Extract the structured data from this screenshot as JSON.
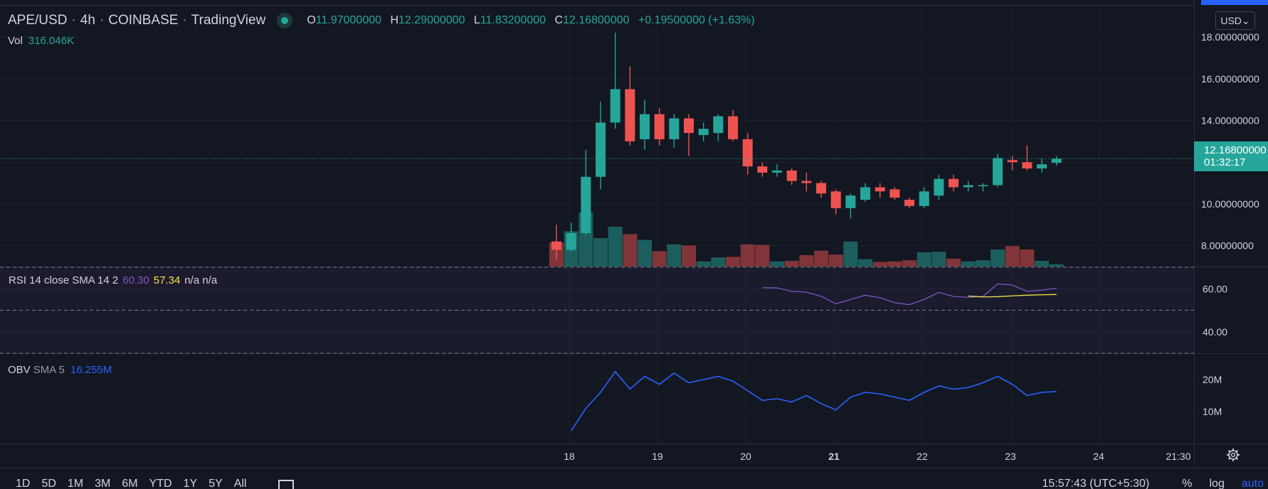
{
  "header": {
    "symbol": "APE/USD",
    "interval": "4h",
    "exchange": "COINBASE",
    "source": "TradingView",
    "ohlc": {
      "o_label": "O",
      "o": "11.97000000",
      "h_label": "H",
      "h": "12.29000000",
      "l_label": "L",
      "l": "11.83200000",
      "c_label": "C",
      "c": "12.16800000",
      "change": "+0.19500000 (+1.63%)"
    }
  },
  "volume_legend": {
    "label": "Vol",
    "value": "316.046K"
  },
  "rsi_legend": {
    "label": "RSI 14 close SMA 14 2",
    "rsi": "60.30",
    "sma": "57.34",
    "na": "n/a n/a"
  },
  "obv_legend": {
    "label": "OBV",
    "sma": "SMA 5",
    "value": "16.255M"
  },
  "currency_button": "USD⌄",
  "price_tag": {
    "price": "12.16800000",
    "countdown": "01:32:17"
  },
  "price_axis": [
    "18.00000000",
    "16.00000000",
    "14.00000000",
    "10.00000000",
    "8.00000000"
  ],
  "rsi_axis": [
    "60.00",
    "40.00"
  ],
  "obv_axis": [
    "20M",
    "10M"
  ],
  "time_axis": [
    "18",
    "19",
    "20",
    "21",
    "22",
    "23",
    "24",
    "21:30"
  ],
  "bottom_bar": {
    "ranges": [
      "1D",
      "5D",
      "1M",
      "3M",
      "6M",
      "YTD",
      "1Y",
      "5Y",
      "All"
    ],
    "clock": "15:57:43 (UTC+5:30)",
    "percent": "%",
    "log": "log",
    "auto": "auto"
  },
  "colors": {
    "up": "#26a69a",
    "down": "#ef5350",
    "rsi": "#7e57c2",
    "rsi_sma": "#f5e546",
    "obv": "#2962ff",
    "background": "#131722"
  },
  "chart_data": [
    {
      "type": "candlestick",
      "interval": "4h",
      "x_start": "2022-03-17 20:00",
      "candles": [
        {
          "o": 8.2,
          "h": 9.0,
          "l": 7.3,
          "c": 7.8
        },
        {
          "o": 7.8,
          "h": 9.1,
          "l": 7.7,
          "c": 8.6
        },
        {
          "o": 8.6,
          "h": 12.6,
          "l": 8.5,
          "c": 11.3
        },
        {
          "o": 11.3,
          "h": 14.9,
          "l": 10.7,
          "c": 13.9
        },
        {
          "o": 13.9,
          "h": 18.2,
          "l": 13.6,
          "c": 15.5
        },
        {
          "o": 15.5,
          "h": 16.6,
          "l": 12.8,
          "c": 13.0
        },
        {
          "o": 13.1,
          "h": 15.0,
          "l": 12.6,
          "c": 14.3
        },
        {
          "o": 14.3,
          "h": 14.6,
          "l": 12.8,
          "c": 13.1
        },
        {
          "o": 13.1,
          "h": 14.3,
          "l": 12.7,
          "c": 14.1
        },
        {
          "o": 14.1,
          "h": 14.3,
          "l": 12.3,
          "c": 13.4
        },
        {
          "o": 13.3,
          "h": 13.9,
          "l": 13.0,
          "c": 13.6
        },
        {
          "o": 13.4,
          "h": 14.3,
          "l": 13.0,
          "c": 14.2
        },
        {
          "o": 14.2,
          "h": 14.5,
          "l": 13.0,
          "c": 13.1
        },
        {
          "o": 13.1,
          "h": 13.4,
          "l": 11.4,
          "c": 11.8
        },
        {
          "o": 11.8,
          "h": 12.0,
          "l": 11.3,
          "c": 11.5
        },
        {
          "o": 11.5,
          "h": 11.9,
          "l": 11.3,
          "c": 11.6
        },
        {
          "o": 11.6,
          "h": 11.7,
          "l": 10.9,
          "c": 11.1
        },
        {
          "o": 11.1,
          "h": 11.5,
          "l": 10.6,
          "c": 11.0
        },
        {
          "o": 11.0,
          "h": 11.1,
          "l": 10.3,
          "c": 10.5
        },
        {
          "o": 10.6,
          "h": 10.7,
          "l": 9.5,
          "c": 9.8
        },
        {
          "o": 9.8,
          "h": 10.5,
          "l": 9.3,
          "c": 10.4
        },
        {
          "o": 10.2,
          "h": 11.0,
          "l": 10.1,
          "c": 10.8
        },
        {
          "o": 10.8,
          "h": 11.0,
          "l": 10.3,
          "c": 10.6
        },
        {
          "o": 10.7,
          "h": 10.8,
          "l": 10.2,
          "c": 10.3
        },
        {
          "o": 10.2,
          "h": 10.3,
          "l": 9.8,
          "c": 9.9
        },
        {
          "o": 9.9,
          "h": 10.8,
          "l": 9.8,
          "c": 10.6
        },
        {
          "o": 10.4,
          "h": 11.4,
          "l": 10.2,
          "c": 11.2
        },
        {
          "o": 11.2,
          "h": 11.4,
          "l": 10.6,
          "c": 10.8
        },
        {
          "o": 10.8,
          "h": 11.1,
          "l": 10.6,
          "c": 10.9
        },
        {
          "o": 10.9,
          "h": 11.0,
          "l": 10.6,
          "c": 10.9
        },
        {
          "o": 10.9,
          "h": 12.4,
          "l": 10.8,
          "c": 12.2
        },
        {
          "o": 12.1,
          "h": 12.3,
          "l": 11.6,
          "c": 12.0
        },
        {
          "o": 12.0,
          "h": 12.8,
          "l": 11.6,
          "c": 11.7
        },
        {
          "o": 11.7,
          "h": 12.2,
          "l": 11.5,
          "c": 11.9
        },
        {
          "o": 11.97,
          "h": 12.29,
          "l": 11.832,
          "c": 12.168
        }
      ],
      "volume": [
        0.42,
        0.62,
        0.95,
        0.5,
        0.7,
        0.57,
        0.47,
        0.27,
        0.39,
        0.37,
        0.09,
        0.16,
        0.17,
        0.39,
        0.38,
        0.09,
        0.1,
        0.2,
        0.28,
        0.21,
        0.44,
        0.13,
        0.08,
        0.09,
        0.11,
        0.25,
        0.26,
        0.14,
        0.09,
        0.11,
        0.3,
        0.36,
        0.3,
        0.1,
        0.04
      ],
      "current_price": 12.168,
      "ylim": [
        7.0,
        19.5
      ]
    },
    {
      "type": "line",
      "title": "RSI 14 close SMA 14 2",
      "series": [
        {
          "name": "RSI",
          "start_index": 14,
          "values": [
            60.5,
            60.4,
            58.8,
            58.4,
            56.5,
            53.0,
            55.0,
            57.0,
            55.8,
            53.5,
            52.6,
            55.0,
            58.3,
            56.4,
            56.0,
            56.4,
            62.3,
            61.7,
            58.8,
            59.3,
            60.3
          ]
        },
        {
          "name": "SMA",
          "start_index": 28,
          "values": [
            56.6,
            56.2,
            56.3,
            56.7,
            57.0,
            57.2,
            57.34
          ]
        }
      ],
      "ylim": [
        30,
        70
      ]
    },
    {
      "type": "line",
      "title": "OBV SMA 5",
      "series": [
        {
          "name": "OBV",
          "start_index": 1,
          "values": [
            4,
            11,
            16,
            22.5,
            17,
            21,
            18.5,
            22,
            19,
            20,
            21,
            19.5,
            16.5,
            13.5,
            14,
            13,
            15,
            12.5,
            10.5,
            14.5,
            16,
            15.5,
            14.5,
            13.5,
            16,
            18,
            17,
            17.5,
            19,
            21,
            18.5,
            15,
            16,
            16.255
          ]
        }
      ],
      "ylim": [
        0,
        28
      ]
    }
  ]
}
